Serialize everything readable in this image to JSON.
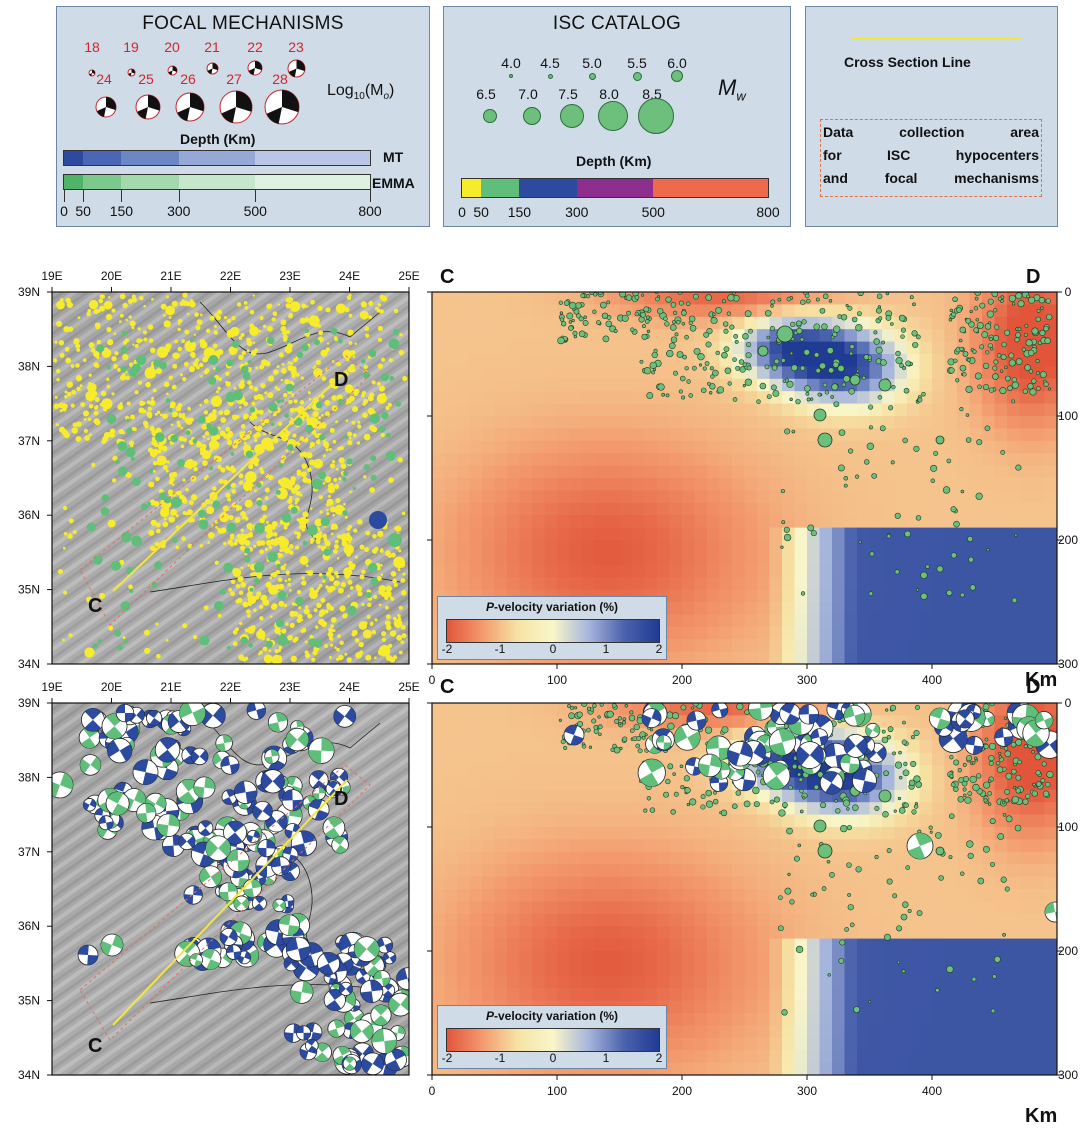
{
  "focal_legend": {
    "title": "FOCAL MECHANISMS",
    "moment_row1": [
      "18",
      "19",
      "20",
      "21",
      "22",
      "23"
    ],
    "moment_row2": [
      "24",
      "25",
      "26",
      "27",
      "28"
    ],
    "log_label": "Log",
    "log_sub": "10",
    "log_paren": "(M",
    "log_paren_sub": "o",
    "log_close": ")",
    "depth_label": "Depth (Km)",
    "mt_label": "MT",
    "emma_label": "EMMA",
    "depth_ticks": [
      "0",
      "50",
      "150",
      "300",
      "500",
      "800"
    ],
    "mt_colors": [
      "#2e4aa0",
      "#4a66b4",
      "#6d86c4",
      "#95a8d6",
      "#bac6e6"
    ],
    "emma_colors": [
      "#4fb46a",
      "#7cc88d",
      "#a4d9ae",
      "#c6e7cb",
      "#dff1e1"
    ]
  },
  "isc_legend": {
    "title": "ISC CATALOG",
    "mags_row1": [
      "4.0",
      "4.5",
      "5.0",
      "5.5",
      "6.0"
    ],
    "mags_row2": [
      "6.5",
      "7.0",
      "7.5",
      "8.0",
      "8.5"
    ],
    "mw_label": "M",
    "mw_sub": "w",
    "depth_label": "Depth (Km)",
    "depth_ticks": [
      "0",
      "50",
      "150",
      "300",
      "500",
      "800"
    ],
    "depth_colors": [
      "#f7ec2c",
      "#5fbe7a",
      "#2b4aa0",
      "#8e2f8e",
      "#ee6a4a"
    ],
    "dot_color": "#6cc07c"
  },
  "cs_legend": {
    "line_label": "Cross Section Line",
    "area_label_1": "Data collection area",
    "area_label_2": "for ISC hypocenters",
    "area_label_3": "and focal mechanisms",
    "line_color": "#f5e63a"
  },
  "map": {
    "lon_ticks": [
      "19E",
      "20E",
      "21E",
      "22E",
      "23E",
      "24E",
      "25E"
    ],
    "lat_ticks": [
      "39N",
      "38N",
      "37N",
      "36N",
      "35N",
      "34N"
    ],
    "point_c": "C",
    "point_d": "D"
  },
  "section": {
    "start_label": "C",
    "end_label": "D",
    "x_ticks": [
      "0",
      "100",
      "200",
      "300",
      "400"
    ],
    "y_ticks": [
      "0",
      "100",
      "200",
      "300"
    ],
    "x_unit": "Km",
    "colorbar_title_italic": "P",
    "colorbar_title_rest": "-velocity variation (%)",
    "colorbar_ticks": [
      "-2",
      "-1",
      "0",
      "1",
      "2"
    ]
  }
}
